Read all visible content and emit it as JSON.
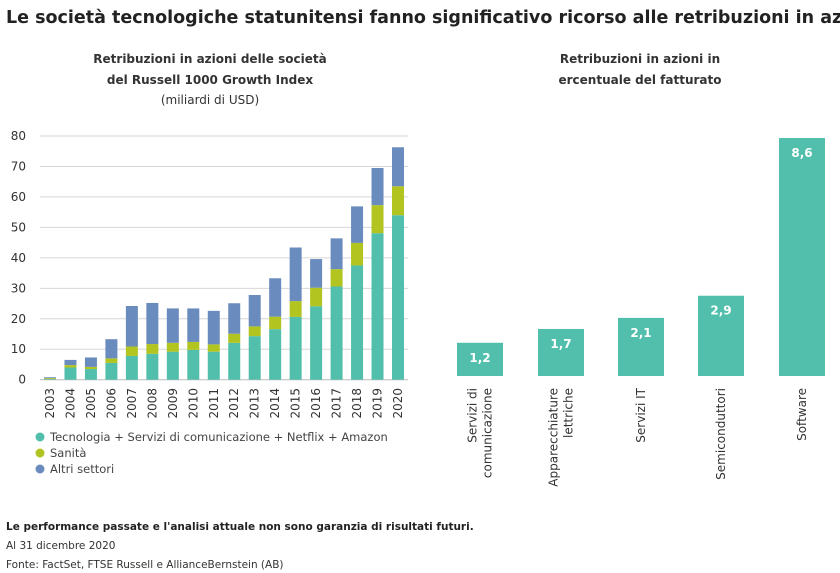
{
  "title": "Le società tecnologiche statunitensi fanno significativo ricorso alle retribuzioni in azioni",
  "footer": {
    "disclaimer": "Le performance passate e l'analisi attuale non sono garanzia di risultati futuri.",
    "date": "Al 31 dicembre 2020",
    "source": "Fonte: FactSet, FTSE Russell e AllianceBernstein (AB)"
  },
  "chart_data": [
    {
      "type": "bar",
      "stacked": true,
      "title_lines": [
        "Retribuzioni in azioni delle società",
        "del Russell 1000 Growth Index"
      ],
      "subtitle": "(miliardi di USD)",
      "categories": [
        "2003",
        "2004",
        "2005",
        "2006",
        "2007",
        "2008",
        "2009",
        "2010",
        "2011",
        "2012",
        "2013",
        "2014",
        "2015",
        "2016",
        "2017",
        "2018",
        "2019",
        "2020"
      ],
      "ylim": [
        0,
        80
      ],
      "yticks": [
        0,
        10,
        20,
        30,
        40,
        50,
        60,
        70,
        80
      ],
      "grid": true,
      "legend_position": "bottom-left",
      "series": [
        {
          "name": "Tecnologia + Servizi di comunicazione + Netflix + Amazon",
          "color": "#52bfad",
          "values": [
            0.2,
            4.0,
            3.5,
            5.5,
            7.8,
            8.5,
            9.2,
            9.8,
            9.2,
            12.1,
            14.3,
            16.6,
            20.6,
            24.1,
            30.6,
            37.5,
            48.1,
            54.0
          ]
        },
        {
          "name": "Sanità",
          "color": "#b2c420",
          "values": [
            0.3,
            0.8,
            0.7,
            1.5,
            3.1,
            3.2,
            2.9,
            2.6,
            2.4,
            3.0,
            3.2,
            4.1,
            5.2,
            6.1,
            5.7,
            7.4,
            9.2,
            9.5
          ]
        },
        {
          "name": "Altri settori",
          "color": "#6a8bbd",
          "values": [
            0.3,
            1.7,
            3.1,
            6.3,
            13.3,
            13.5,
            11.3,
            11.0,
            11.0,
            10.0,
            10.3,
            12.6,
            17.6,
            9.4,
            10.1,
            12.0,
            12.2,
            12.8
          ]
        }
      ]
    },
    {
      "type": "bar",
      "title_lines": [
        "Retribuzioni in azioni in",
        "ercentuale del fatturato"
      ],
      "categories": [
        [
          "Servizi di",
          "comunicazione"
        ],
        [
          "Apparecchiature",
          "lettriche"
        ],
        [
          "Servizi IT"
        ],
        [
          "Semiconduttori"
        ],
        [
          "Software"
        ]
      ],
      "values": [
        1.2,
        1.7,
        2.1,
        2.9,
        8.6
      ],
      "data_labels": [
        "1,2",
        "1,7",
        "2,1",
        "2,9",
        "8,6"
      ],
      "color": "#52bfad"
    }
  ]
}
